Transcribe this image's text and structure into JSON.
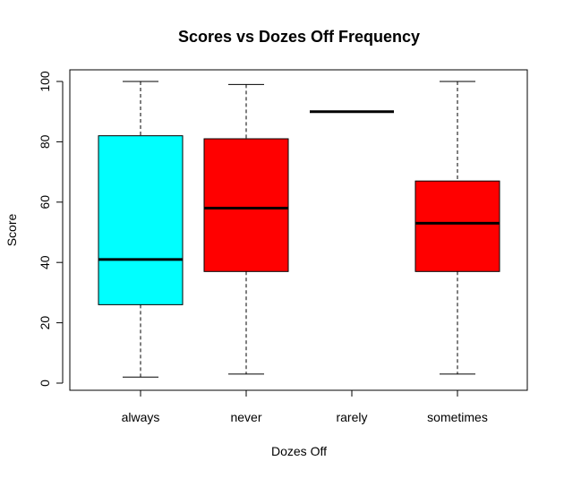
{
  "chart_data": {
    "type": "boxplot",
    "title": "Scores vs Dozes Off Frequency",
    "xlabel": "Dozes Off",
    "ylabel": "Score",
    "ylim": [
      0,
      100
    ],
    "yticks": [
      0,
      20,
      40,
      60,
      80,
      100
    ],
    "categories": [
      "always",
      "never",
      "rarely",
      "sometimes"
    ],
    "boxes": [
      {
        "category": "always",
        "min": 2,
        "q1": 26,
        "median": 41,
        "q3": 82,
        "max": 100,
        "color": "#00FFFF"
      },
      {
        "category": "never",
        "min": 3,
        "q1": 37,
        "median": 58,
        "q3": 81,
        "max": 99,
        "color": "#FF0000"
      },
      {
        "category": "rarely",
        "min": 90,
        "q1": 90,
        "median": 90,
        "q3": 90,
        "max": 90,
        "color": "#FF0000"
      },
      {
        "category": "sometimes",
        "min": 3,
        "q1": 37,
        "median": 53,
        "q3": 67,
        "max": 100,
        "color": "#FF0000"
      }
    ],
    "grid": false,
    "legend": "none"
  }
}
